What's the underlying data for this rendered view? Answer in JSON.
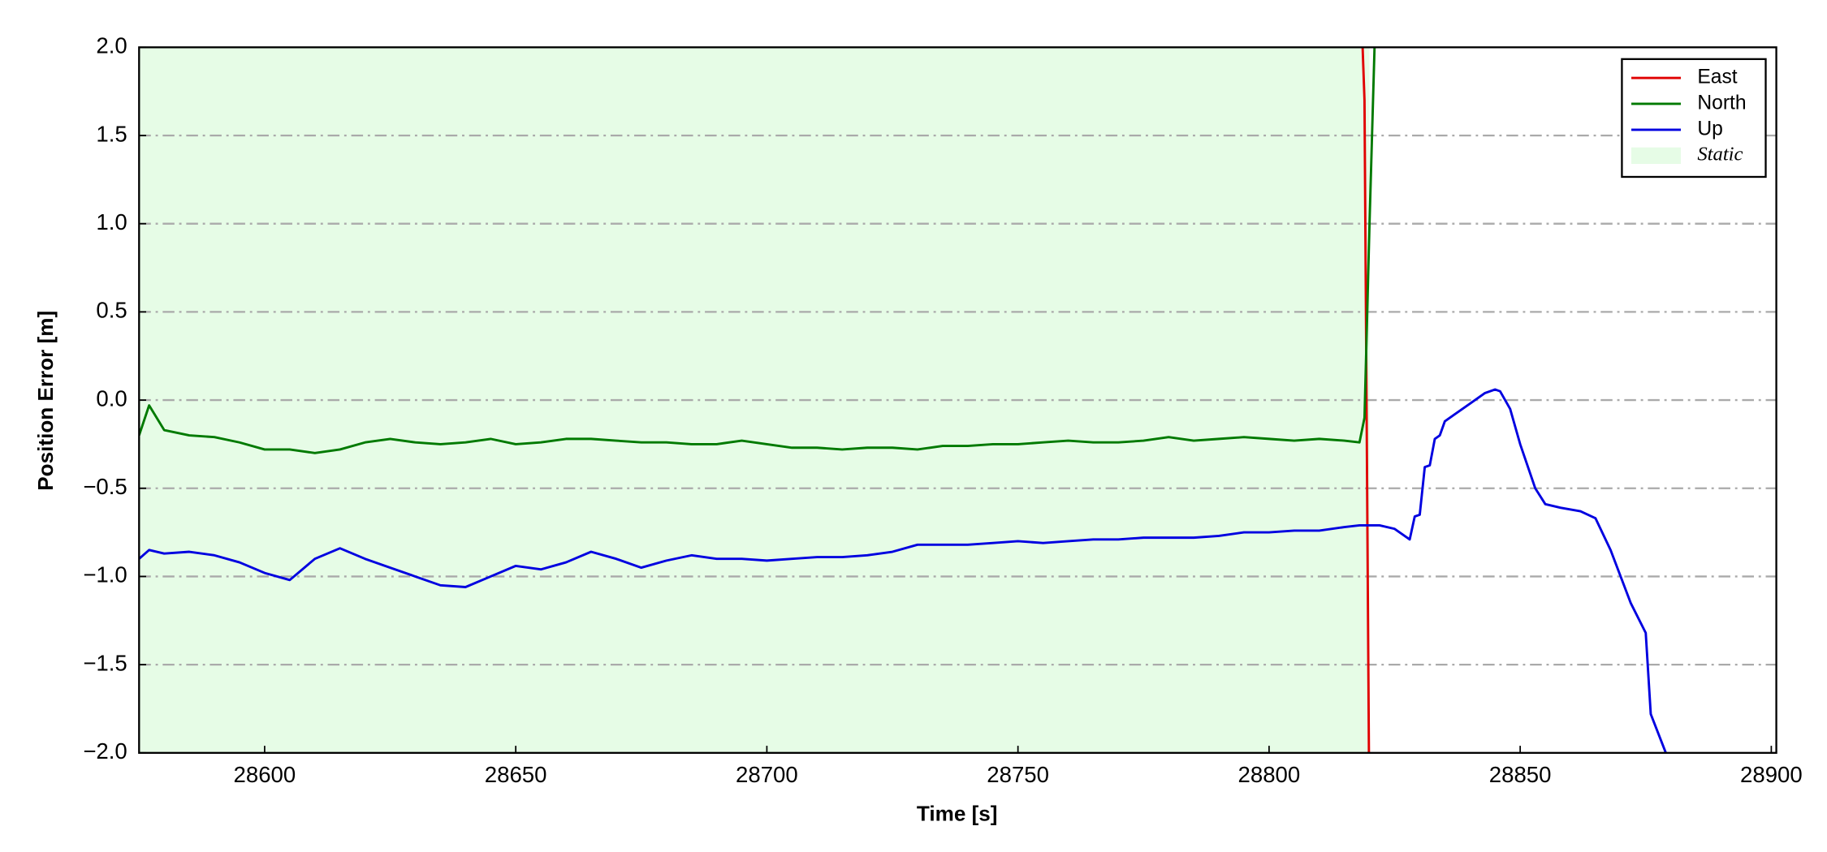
{
  "chart_data": {
    "type": "line",
    "xlabel": "Time [s]",
    "ylabel": "Position Error [m]",
    "x": [
      28575,
      28577,
      28580,
      28585,
      28590,
      28595,
      28600,
      28605,
      28610,
      28615,
      28620,
      28625,
      28630,
      28635,
      28640,
      28645,
      28650,
      28655,
      28660,
      28665,
      28670,
      28675,
      28680,
      28685,
      28690,
      28695,
      28700,
      28705,
      28710,
      28715,
      28720,
      28725,
      28730,
      28735,
      28740,
      28745,
      28750,
      28755,
      28760,
      28765,
      28770,
      28775,
      28780,
      28785,
      28790,
      28795,
      28800,
      28805,
      28810,
      28815,
      28818,
      28819,
      28820,
      28822,
      28825,
      28828,
      28829,
      28830,
      28831,
      28832,
      28833,
      28834,
      28835,
      28837,
      28840,
      28843,
      28845,
      28846,
      28848,
      28850,
      28853,
      28855,
      28858,
      28862,
      28865,
      28868,
      28872,
      28875,
      28876,
      28879
    ],
    "series": [
      {
        "name": "East",
        "color": "#e00000",
        "values": [
          null,
          null,
          null,
          null,
          null,
          null,
          null,
          null,
          null,
          null,
          null,
          null,
          null,
          null,
          null,
          null,
          null,
          null,
          null,
          null,
          null,
          null,
          null,
          null,
          null,
          null,
          null,
          null,
          null,
          null,
          null,
          null,
          null,
          null,
          null,
          null,
          null,
          null,
          null,
          null,
          null,
          null,
          null,
          null,
          null,
          null,
          null,
          null,
          null,
          null,
          2.5,
          1.7,
          -2.5,
          null,
          null,
          null,
          null,
          null,
          null,
          null,
          null,
          null,
          null,
          null,
          null,
          null,
          null,
          null,
          null,
          null,
          null,
          null,
          null,
          null,
          null,
          null,
          null,
          null,
          null,
          null
        ]
      },
      {
        "name": "North",
        "color": "#007a00",
        "values": [
          -0.2,
          -0.03,
          -0.17,
          -0.2,
          -0.21,
          -0.24,
          -0.28,
          -0.28,
          -0.3,
          -0.28,
          -0.24,
          -0.22,
          -0.24,
          -0.25,
          -0.24,
          -0.22,
          -0.25,
          -0.24,
          -0.22,
          -0.22,
          -0.23,
          -0.24,
          -0.24,
          -0.25,
          -0.25,
          -0.23,
          -0.25,
          -0.27,
          -0.27,
          -0.28,
          -0.27,
          -0.27,
          -0.28,
          -0.26,
          -0.26,
          -0.25,
          -0.25,
          -0.24,
          -0.23,
          -0.24,
          -0.24,
          -0.23,
          -0.21,
          -0.23,
          -0.22,
          -0.21,
          -0.22,
          -0.23,
          -0.22,
          -0.23,
          -0.24,
          -0.1,
          1.0,
          3.0,
          null,
          null,
          null,
          null,
          null,
          null,
          null,
          null,
          null,
          null,
          null,
          null,
          null,
          null,
          null,
          null,
          null,
          null,
          null,
          null,
          null,
          null,
          null,
          null,
          null,
          null
        ]
      },
      {
        "name": "Up",
        "color": "#0000e0",
        "values": [
          -0.9,
          -0.85,
          -0.87,
          -0.86,
          -0.88,
          -0.92,
          -0.98,
          -1.02,
          -0.9,
          -0.84,
          -0.9,
          -0.95,
          -1.0,
          -1.05,
          -1.06,
          -1.0,
          -0.94,
          -0.96,
          -0.92,
          -0.86,
          -0.9,
          -0.95,
          -0.91,
          -0.88,
          -0.9,
          -0.9,
          -0.91,
          -0.9,
          -0.89,
          -0.89,
          -0.88,
          -0.86,
          -0.82,
          -0.82,
          -0.82,
          -0.81,
          -0.8,
          -0.81,
          -0.8,
          -0.79,
          -0.79,
          -0.78,
          -0.78,
          -0.78,
          -0.77,
          -0.75,
          -0.75,
          -0.74,
          -0.74,
          -0.72,
          -0.71,
          -0.71,
          -0.71,
          -0.71,
          -0.73,
          -0.79,
          -0.66,
          -0.65,
          -0.38,
          -0.37,
          -0.22,
          -0.2,
          -0.12,
          -0.08,
          -0.02,
          0.04,
          0.06,
          0.05,
          -0.05,
          -0.25,
          -0.5,
          -0.59,
          -0.61,
          -0.63,
          -0.67,
          -0.85,
          -1.15,
          -1.32,
          -1.78,
          -2.0
        ]
      }
    ],
    "static_label": "Static",
    "static_span": [
      28575,
      28820
    ],
    "static_color": "#e6fce6",
    "xlim": [
      28575,
      28901
    ],
    "ylim": [
      -2,
      2
    ],
    "xticks": [
      28600,
      28650,
      28700,
      28750,
      28800,
      28850,
      28900
    ],
    "yticks": [
      {
        "value": -2,
        "label": "−2.0"
      },
      {
        "value": -1.5,
        "label": "−1.5"
      },
      {
        "value": -1,
        "label": "−1.0"
      },
      {
        "value": -0.5,
        "label": "−0.5"
      },
      {
        "value": 0,
        "label": "0.0"
      },
      {
        "value": 0.5,
        "label": "0.5"
      },
      {
        "value": 1,
        "label": "1.0"
      },
      {
        "value": 1.5,
        "label": "1.5"
      },
      {
        "value": 2,
        "label": "2.0"
      }
    ],
    "grid": true,
    "legend": "upper right"
  }
}
